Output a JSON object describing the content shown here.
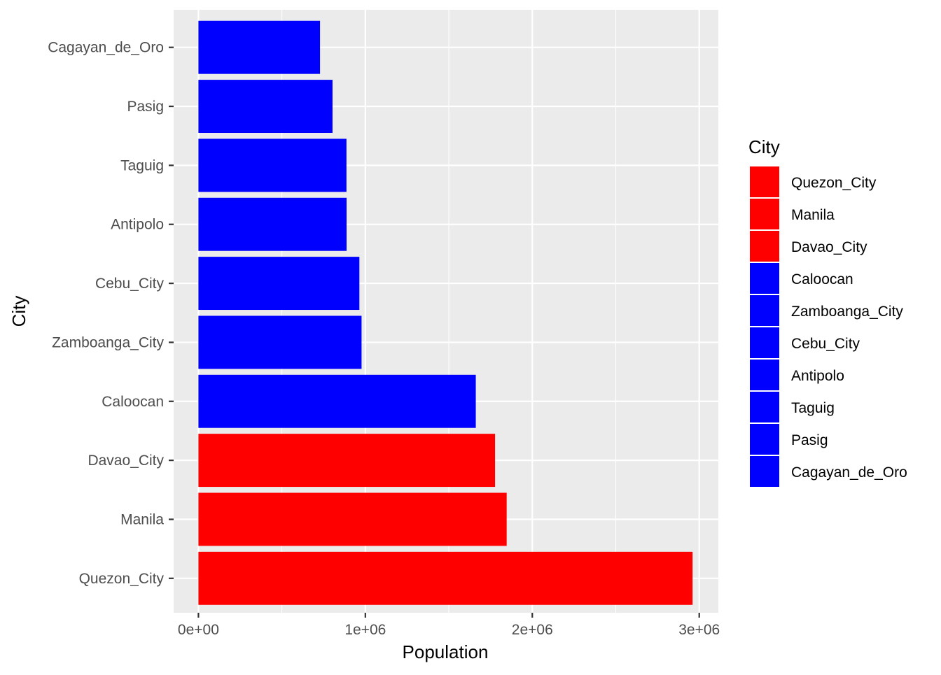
{
  "chart_data": {
    "type": "bar",
    "orientation": "horizontal",
    "xlabel": "Population",
    "ylabel": "City",
    "xlim": [
      0,
      3100000
    ],
    "x_ticks": [
      0,
      1000000,
      2000000,
      3000000
    ],
    "x_tick_labels": [
      "0e+00",
      "1e+06",
      "2e+06",
      "3e+06"
    ],
    "categories": [
      "Quezon_City",
      "Manila",
      "Davao_City",
      "Caloocan",
      "Zamboanga_City",
      "Cebu_City",
      "Antipolo",
      "Taguig",
      "Pasig",
      "Cagayan_de_Oro"
    ],
    "values": [
      2960048,
      1846513,
      1776949,
      1661584,
      977234,
      964169,
      887399,
      886722,
      803159,
      728402
    ],
    "colors": [
      "#FF0000",
      "#FF0000",
      "#FF0000",
      "#0000FF",
      "#0000FF",
      "#0000FF",
      "#0000FF",
      "#0000FF",
      "#0000FF",
      "#0000FF"
    ],
    "grid": true,
    "legend": {
      "title": "City",
      "placement": "right",
      "entries": [
        "Quezon_City",
        "Manila",
        "Davao_City",
        "Caloocan",
        "Zamboanga_City",
        "Cebu_City",
        "Antipolo",
        "Taguig",
        "Pasig",
        "Cagayan_de_Oro"
      ]
    }
  }
}
